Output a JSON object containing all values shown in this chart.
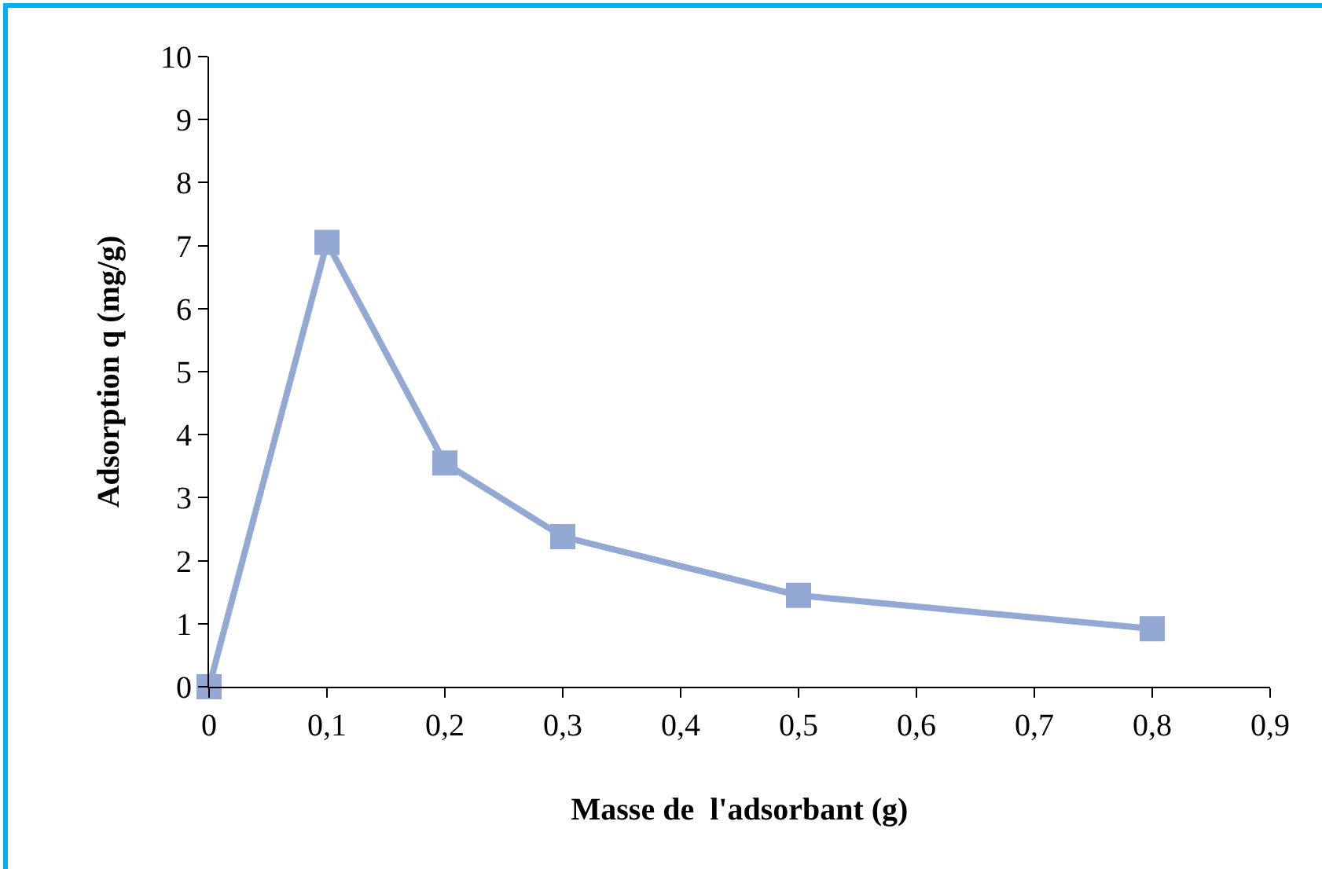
{
  "chart_data": {
    "type": "line",
    "xlabel": "Masse de  l'adsorbant (g)",
    "ylabel": "Adsorption q (mg/g)",
    "x": [
      0,
      0.1,
      0.2,
      0.3,
      0.5,
      0.8
    ],
    "series": [
      {
        "color": "#93a8d3",
        "values": [
          0,
          7.05,
          3.55,
          2.38,
          1.45,
          0.92
        ]
      }
    ],
    "xlim": [
      0,
      0.9
    ],
    "xticks": [
      0,
      {
        "value": 0.1,
        "label": "0,1"
      },
      {
        "value": 0.2,
        "label": "0,2"
      },
      {
        "value": 0.3,
        "label": "0,3"
      },
      {
        "value": 0.4,
        "label": "0,4"
      },
      {
        "value": 0.5,
        "label": "0,5"
      },
      {
        "value": 0.6,
        "label": "0,6"
      },
      {
        "value": 0.7,
        "label": "0,7"
      },
      {
        "value": 0.8,
        "label": "0,8"
      },
      {
        "value": 0.9,
        "label": "0,9"
      }
    ],
    "ylim": [
      0,
      10
    ],
    "yticks": [
      0,
      1,
      2,
      3,
      4,
      5,
      6,
      7,
      8,
      9,
      10
    ],
    "grid": false,
    "marker": "square",
    "line_style": "solid"
  }
}
